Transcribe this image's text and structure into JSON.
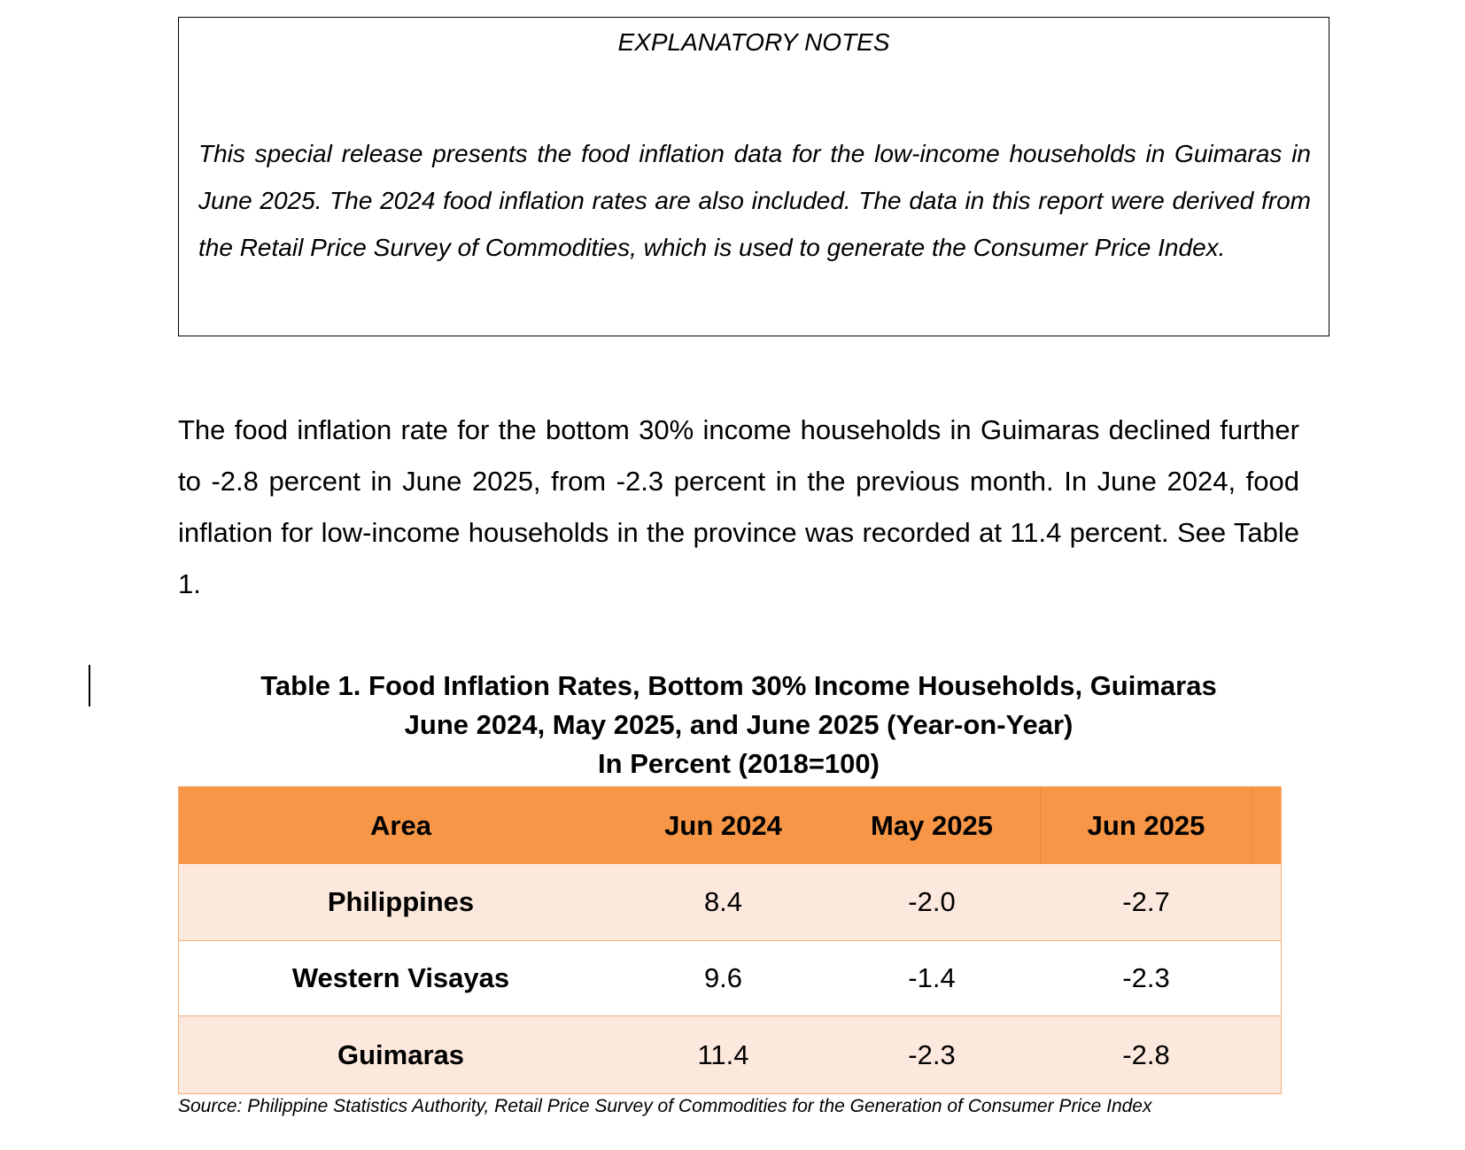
{
  "notes": {
    "title": "EXPLANATORY NOTES",
    "body": "This special release presents the food inflation data for the low-income households in Guimaras in June 2025. The 2024 food inflation rates are also included. The data in this report were derived from the Retail Price Survey of Commodities, which is used to generate the Consumer Price Index."
  },
  "paragraph": "The food inflation rate for the bottom 30% income households in Guimaras declined further to -2.8 percent in June 2025, from -2.3 percent in the previous month. In June 2024, food inflation for low-income households in the province was recorded at 11.4 percent. See Table 1.",
  "table": {
    "title_lines": [
      "Table 1. Food Inflation Rates, Bottom 30% Income Households, Guimaras",
      "June 2024, May 2025, and June 2025 (Year-on-Year)",
      "In Percent (2018=100)"
    ],
    "headers": [
      "Area",
      "Jun 2024",
      "May 2025",
      "Jun 2025"
    ],
    "rows": [
      {
        "area": "Philippines",
        "jun2024": "8.4",
        "may2025": "-2.0",
        "jun2025": "-2.7"
      },
      {
        "area": "Western Visayas",
        "jun2024": "9.6",
        "may2025": "-1.4",
        "jun2025": "-2.3"
      },
      {
        "area": "Guimaras",
        "jun2024": "11.4",
        "may2025": "-2.3",
        "jun2025": "-2.8"
      }
    ],
    "source": "Source: Philippine Statistics Authority, Retail Price Survey of Commodities for the Generation of Consumer Price Index"
  },
  "colors": {
    "header_fill": "#f79646",
    "band_fill": "#fce8dc",
    "border": "#f6b07a"
  }
}
